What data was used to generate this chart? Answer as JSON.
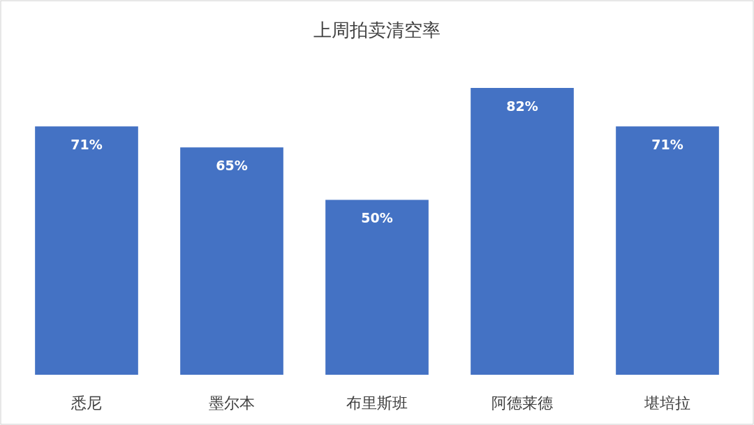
{
  "chart_data": {
    "type": "bar",
    "title": "上周拍卖清空率",
    "categories": [
      "悉尼",
      "墨尔本",
      "布里斯班",
      "阿德莱德",
      "堪培拉"
    ],
    "values": [
      71,
      65,
      50,
      82,
      71
    ],
    "value_labels": [
      "71%",
      "65%",
      "50%",
      "82%",
      "71%"
    ],
    "color": "#4472c4"
  }
}
